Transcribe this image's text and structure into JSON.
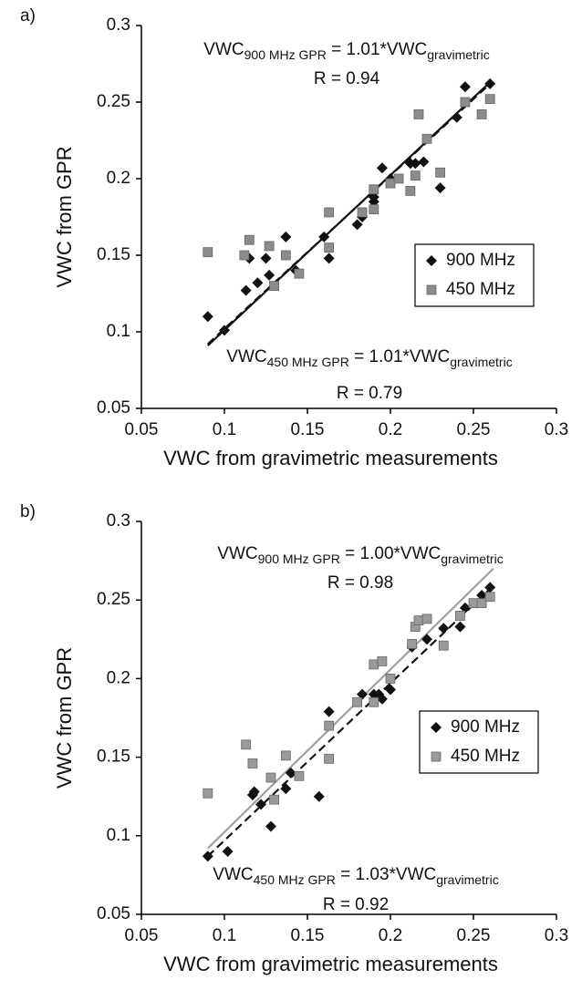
{
  "chart_data": [
    {
      "type": "scatter",
      "label": "a)",
      "xlabel": "VWC from gravimetric measurements",
      "ylabel": "VWC from GPR",
      "xlim": [
        0.05,
        0.3
      ],
      "ylim": [
        0.05,
        0.3
      ],
      "xticks": [
        0.05,
        0.1,
        0.15,
        0.2,
        0.25,
        0.3
      ],
      "yticks": [
        0.05,
        0.1,
        0.15,
        0.2,
        0.25,
        0.3
      ],
      "series": [
        {
          "name": "900 MHz",
          "color": "#111111",
          "marker": "diamond",
          "x": [
            0.09,
            0.1,
            0.113,
            0.115,
            0.12,
            0.125,
            0.127,
            0.137,
            0.143,
            0.16,
            0.163,
            0.18,
            0.183,
            0.19,
            0.19,
            0.195,
            0.2,
            0.212,
            0.215,
            0.22,
            0.23,
            0.24,
            0.245,
            0.26
          ],
          "y": [
            0.11,
            0.101,
            0.127,
            0.148,
            0.132,
            0.148,
            0.137,
            0.162,
            0.14,
            0.162,
            0.148,
            0.17,
            0.175,
            0.185,
            0.188,
            0.207,
            0.2,
            0.21,
            0.21,
            0.211,
            0.194,
            0.24,
            0.26,
            0.262
          ],
          "fit_x": [
            0.09,
            0.26
          ],
          "fit_y": [
            0.091,
            0.263
          ],
          "fit_color": "#111111",
          "fit_dash": false
        },
        {
          "name": "450 MHz",
          "color": "#8c8c8c",
          "marker": "square",
          "x": [
            0.09,
            0.112,
            0.115,
            0.127,
            0.13,
            0.137,
            0.145,
            0.163,
            0.163,
            0.183,
            0.19,
            0.19,
            0.2,
            0.205,
            0.212,
            0.215,
            0.217,
            0.222,
            0.23,
            0.245,
            0.255,
            0.26
          ],
          "y": [
            0.152,
            0.15,
            0.16,
            0.156,
            0.13,
            0.15,
            0.138,
            0.178,
            0.155,
            0.178,
            0.18,
            0.193,
            0.197,
            0.2,
            0.192,
            0.202,
            0.242,
            0.226,
            0.204,
            0.25,
            0.242,
            0.252
          ],
          "fit_x": [
            0.09,
            0.26
          ],
          "fit_y": [
            0.092,
            0.262
          ],
          "fit_color": "#111111",
          "fit_dash": true
        }
      ],
      "annotations": [
        {
          "line1": [
            "VWC",
            "900 MHz GPR",
            " = 1.01*VWC",
            "gravimetric"
          ],
          "line2": "R = 0.94"
        },
        {
          "line1": [
            "VWC",
            "450 MHz GPR",
            " = 1.01*VWC",
            "gravimetric"
          ],
          "line2": "R = 0.79"
        }
      ]
    },
    {
      "type": "scatter",
      "label": "b)",
      "xlabel": "VWC from gravimetric measurements",
      "ylabel": "VWC from GPR",
      "xlim": [
        0.05,
        0.3
      ],
      "ylim": [
        0.05,
        0.3
      ],
      "xticks": [
        0.05,
        0.1,
        0.15,
        0.2,
        0.25,
        0.3
      ],
      "yticks": [
        0.05,
        0.1,
        0.15,
        0.2,
        0.25,
        0.3
      ],
      "series": [
        {
          "name": "900 MHz",
          "color": "#111111",
          "marker": "diamond",
          "x": [
            0.09,
            0.102,
            0.117,
            0.118,
            0.122,
            0.128,
            0.137,
            0.14,
            0.157,
            0.163,
            0.183,
            0.19,
            0.193,
            0.195,
            0.2,
            0.213,
            0.222,
            0.232,
            0.242,
            0.245,
            0.255,
            0.26
          ],
          "y": [
            0.087,
            0.09,
            0.126,
            0.128,
            0.12,
            0.106,
            0.13,
            0.14,
            0.125,
            0.179,
            0.19,
            0.19,
            0.19,
            0.187,
            0.193,
            0.22,
            0.225,
            0.232,
            0.233,
            0.245,
            0.253,
            0.258
          ],
          "fit_x": [
            0.09,
            0.26
          ],
          "fit_y": [
            0.087,
            0.257
          ],
          "fit_color": "#111111",
          "fit_dash": true
        },
        {
          "name": "450 MHz",
          "color": "#9a9a9a",
          "marker": "square",
          "x": [
            0.09,
            0.113,
            0.117,
            0.128,
            0.13,
            0.137,
            0.145,
            0.163,
            0.163,
            0.18,
            0.19,
            0.19,
            0.195,
            0.2,
            0.213,
            0.215,
            0.217,
            0.222,
            0.232,
            0.242,
            0.25,
            0.255,
            0.26
          ],
          "y": [
            0.127,
            0.158,
            0.146,
            0.137,
            0.123,
            0.151,
            0.138,
            0.149,
            0.17,
            0.185,
            0.185,
            0.209,
            0.211,
            0.2,
            0.222,
            0.233,
            0.237,
            0.238,
            0.221,
            0.24,
            0.248,
            0.248,
            0.252
          ],
          "fit_x": [
            0.09,
            0.262
          ],
          "fit_y": [
            0.092,
            0.27
          ],
          "fit_color": "#a0a0a0",
          "fit_dash": false
        }
      ],
      "annotations": [
        {
          "line1": [
            "VWC",
            "900 MHz GPR",
            " = 1.00*VWC",
            "gravimetric"
          ],
          "line2": "R = 0.98"
        },
        {
          "line1": [
            "VWC",
            "450 MHz GPR",
            " = 1.03*VWC",
            "gravimetric"
          ],
          "line2": "R = 0.92"
        }
      ]
    }
  ]
}
